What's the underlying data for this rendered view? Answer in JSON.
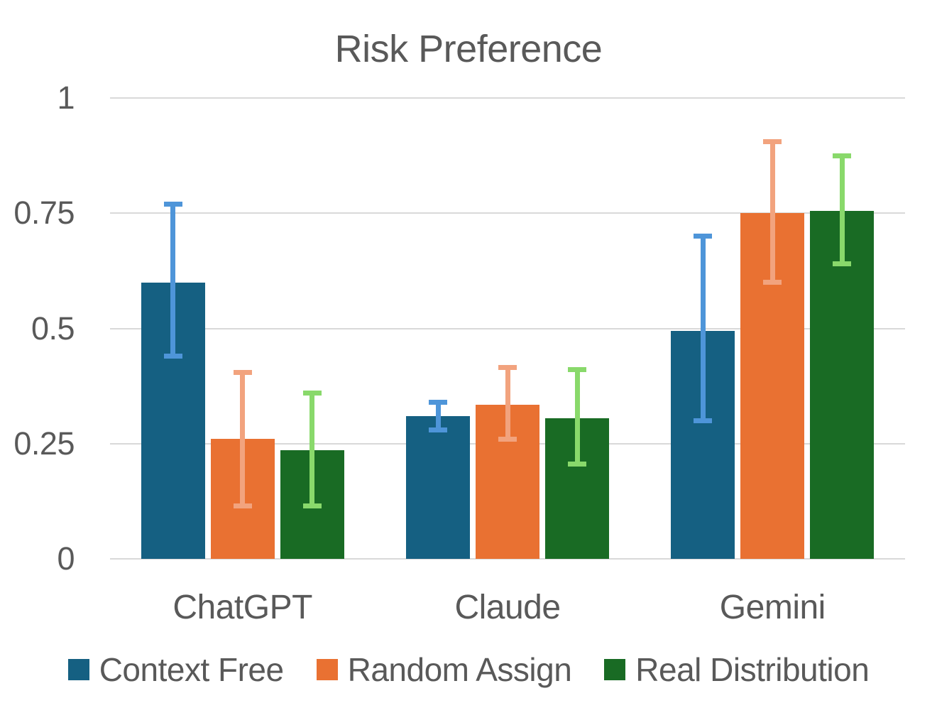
{
  "colors": {
    "gridline": "#D9D9D9",
    "axis_text": "#595959",
    "title_text": "#595959",
    "background": "#FFFFFF"
  },
  "chart_data": {
    "type": "bar",
    "title": "Risk Preference",
    "categories": [
      "ChatGPT",
      "Claude",
      "Gemini"
    ],
    "series": [
      {
        "name": "Context Free",
        "color": "#156082",
        "error_color": "#4E95D9",
        "values": [
          0.6,
          0.31,
          0.495
        ],
        "error_low": [
          0.44,
          0.28,
          0.3
        ],
        "error_high": [
          0.77,
          0.34,
          0.7
        ]
      },
      {
        "name": "Random Assign",
        "color": "#E97132",
        "error_color": "#F2A37E",
        "values": [
          0.26,
          0.335,
          0.75
        ],
        "error_low": [
          0.115,
          0.26,
          0.6
        ],
        "error_high": [
          0.405,
          0.415,
          0.905
        ]
      },
      {
        "name": "Real Distribution",
        "color": "#196B24",
        "error_color": "#89D96B",
        "values": [
          0.235,
          0.305,
          0.755
        ],
        "error_low": [
          0.115,
          0.205,
          0.64
        ],
        "error_high": [
          0.36,
          0.41,
          0.875
        ]
      }
    ],
    "y_ticks": [
      {
        "label": "0",
        "value": 0
      },
      {
        "label": "0.25",
        "value": 0.25
      },
      {
        "label": "0.5",
        "value": 0.5
      },
      {
        "label": "0.75",
        "value": 0.75
      },
      {
        "label": "1",
        "value": 1
      }
    ],
    "ylim": [
      0,
      1
    ],
    "grid": true,
    "legend_position": "bottom"
  }
}
